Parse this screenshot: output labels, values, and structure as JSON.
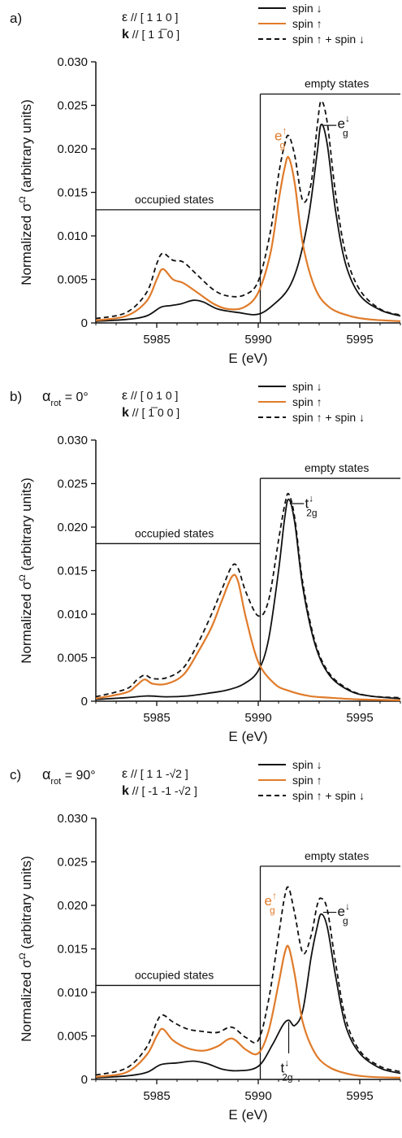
{
  "chart_data": [
    {
      "type": "line",
      "panel_label": "a)",
      "alpha_label": "",
      "alpha_value": "",
      "eps_label": "ε // [ 1 1 0 ]",
      "k_label": "k // [ 1 1̅ 0 ]",
      "legend": [
        "spin ↓",
        "spin ↑",
        "spin ↑ + spin ↓"
      ],
      "ylabel": "Normalized σ^Ω (arbitrary units)",
      "xlabel": "E (eV)",
      "xlim": [
        5982,
        5997
      ],
      "ylim": [
        0,
        0.03
      ],
      "xticks": [
        5985,
        5990,
        5995
      ],
      "yticks": [
        "0",
        "0.005",
        "0.010",
        "0.015",
        "0.020",
        "0.025",
        "0.030"
      ],
      "occupied": {
        "text": "occupied states",
        "level": 0.013,
        "end": 5990.1
      },
      "empty": {
        "text": "empty states",
        "level": 0.0263,
        "start": 5990.1
      },
      "series": [
        {
          "color": "#111111",
          "style": "solid",
          "x": [
            5982.0,
            5983.5,
            5984.5,
            5985.2,
            5985.7,
            5986.2,
            5986.8,
            5987.3,
            5988.0,
            5989.0,
            5990.0,
            5990.8,
            5991.5,
            5992.0,
            5992.5,
            5992.9,
            5993.1,
            5993.4,
            5993.8,
            5994.3,
            5995.0,
            5996.0,
            5997.0
          ],
          "values": [
            0.0002,
            0.0004,
            0.0008,
            0.0018,
            0.002,
            0.0022,
            0.0026,
            0.0024,
            0.0016,
            0.0012,
            0.001,
            0.0022,
            0.004,
            0.007,
            0.0125,
            0.0195,
            0.0228,
            0.0205,
            0.013,
            0.0068,
            0.0032,
            0.0015,
            0.0008
          ]
        },
        {
          "color": "#e07b2a",
          "style": "solid",
          "x": [
            5982.0,
            5983.5,
            5984.5,
            5985.0,
            5985.3,
            5985.8,
            5986.3,
            5987.0,
            5987.8,
            5988.5,
            5989.3,
            5990.0,
            5990.6,
            5991.0,
            5991.3,
            5991.5,
            5991.8,
            5992.2,
            5992.8,
            5993.5,
            5994.5,
            5995.5,
            5997.0
          ],
          "values": [
            0.0003,
            0.0008,
            0.0025,
            0.005,
            0.0062,
            0.005,
            0.0046,
            0.0035,
            0.0022,
            0.0016,
            0.0018,
            0.0035,
            0.008,
            0.014,
            0.0178,
            0.019,
            0.016,
            0.009,
            0.004,
            0.0018,
            0.0008,
            0.0004,
            0.0002
          ]
        },
        {
          "color": "#111111",
          "style": "dashed",
          "x": [
            5982.0,
            5983.5,
            5984.5,
            5985.0,
            5985.3,
            5985.8,
            5986.3,
            5987.0,
            5987.8,
            5988.5,
            5989.3,
            5990.0,
            5990.6,
            5991.0,
            5991.3,
            5991.5,
            5991.8,
            5992.2,
            5992.6,
            5992.9,
            5993.1,
            5993.4,
            5993.8,
            5994.3,
            5995.0,
            5996.0,
            5997.0
          ],
          "values": [
            0.0005,
            0.0012,
            0.0035,
            0.0068,
            0.008,
            0.0072,
            0.007,
            0.0055,
            0.0038,
            0.0031,
            0.0032,
            0.0048,
            0.0105,
            0.017,
            0.0205,
            0.0215,
            0.0192,
            0.014,
            0.016,
            0.0225,
            0.0255,
            0.023,
            0.015,
            0.008,
            0.0038,
            0.0016,
            0.0009
          ]
        }
      ],
      "annotations": [
        {
          "main": "e",
          "sup": "↑",
          "sub": "g",
          "color": "#e07b2a",
          "x": 5990.8,
          "y": 0.021
        },
        {
          "main": "e",
          "sup": "↓",
          "sub": "g",
          "color": "#111111",
          "x": 5993.9,
          "y": 0.0224
        }
      ]
    },
    {
      "type": "line",
      "panel_label": "b)",
      "alpha_label": "α",
      "alpha_sub": "rot",
      "alpha_value": "= 0°",
      "eps_label": "ε // [ 0 1 0 ]",
      "k_label": "k // [ 1̅ 0 0 ]",
      "legend": [
        "spin ↓",
        "spin ↑",
        "spin ↑ + spin ↓"
      ],
      "ylabel": "Normalized σ^Ω (arbitrary units)",
      "xlabel": "E (eV)",
      "xlim": [
        5982,
        5997
      ],
      "ylim": [
        0,
        0.03
      ],
      "xticks": [
        5985,
        5990,
        5995
      ],
      "yticks": [
        "0",
        "0.005",
        "0.010",
        "0.015",
        "0.020",
        "0.025",
        "0.030"
      ],
      "occupied": {
        "text": "occupied states",
        "level": 0.0181,
        "end": 5990.1
      },
      "empty": {
        "text": "empty states",
        "level": 0.0256,
        "start": 5990.1
      },
      "series": [
        {
          "color": "#111111",
          "style": "solid",
          "x": [
            5982.0,
            5983.5,
            5984.5,
            5985.5,
            5986.5,
            5987.5,
            5988.5,
            5989.3,
            5990.0,
            5990.5,
            5991.0,
            5991.3,
            5991.5,
            5991.8,
            5992.2,
            5992.8,
            5993.5,
            5994.5,
            5995.5,
            5997.0
          ],
          "values": [
            0.0002,
            0.0004,
            0.0006,
            0.0005,
            0.0006,
            0.0009,
            0.0013,
            0.002,
            0.0035,
            0.007,
            0.015,
            0.021,
            0.0232,
            0.0205,
            0.013,
            0.0065,
            0.003,
            0.0012,
            0.0006,
            0.0003
          ]
        },
        {
          "color": "#e07b2a",
          "style": "solid",
          "x": [
            5982.0,
            5983.5,
            5984.0,
            5984.4,
            5984.8,
            5985.5,
            5986.3,
            5987.0,
            5987.7,
            5988.2,
            5988.7,
            5989.0,
            5989.4,
            5990.0,
            5990.8,
            5991.5,
            5992.5,
            5993.5,
            5995.0,
            5997.0
          ],
          "values": [
            0.0003,
            0.001,
            0.0018,
            0.0025,
            0.002,
            0.002,
            0.003,
            0.0055,
            0.0085,
            0.0115,
            0.0143,
            0.0138,
            0.0095,
            0.0045,
            0.002,
            0.0012,
            0.0006,
            0.0004,
            0.0002,
            0.0001
          ]
        },
        {
          "color": "#111111",
          "style": "dashed",
          "x": [
            5982.0,
            5983.5,
            5984.0,
            5984.4,
            5984.8,
            5985.5,
            5986.3,
            5987.0,
            5987.7,
            5988.2,
            5988.7,
            5989.0,
            5989.4,
            5990.0,
            5990.5,
            5991.0,
            5991.3,
            5991.5,
            5991.8,
            5992.2,
            5992.8,
            5993.5,
            5994.5,
            5995.5,
            5997.0
          ],
          "values": [
            0.0005,
            0.0014,
            0.0024,
            0.003,
            0.0026,
            0.0027,
            0.0038,
            0.0065,
            0.01,
            0.0128,
            0.0155,
            0.0153,
            0.0125,
            0.0098,
            0.0115,
            0.0185,
            0.0225,
            0.0238,
            0.021,
            0.0135,
            0.0068,
            0.0032,
            0.0013,
            0.0006,
            0.0004
          ]
        }
      ],
      "annotations": [
        {
          "main": "t",
          "sup": "↓",
          "sub": "2g",
          "color": "#111111",
          "x": 5992.3,
          "y": 0.0222
        }
      ]
    },
    {
      "type": "line",
      "panel_label": "c)",
      "alpha_label": "α",
      "alpha_sub": "rot",
      "alpha_value": "= 90°",
      "eps_label": "ε // [ 1 1 -√2 ]",
      "k_label": "k // [ -1 -1 -√2 ]",
      "legend": [
        "spin ↓",
        "spin ↑",
        "spin ↑ + spin ↓"
      ],
      "ylabel": "Normalized σ^Ω (arbitrary units)",
      "xlabel": "E (eV)",
      "xlim": [
        5982,
        5997
      ],
      "ylim": [
        0,
        0.03
      ],
      "xticks": [
        5985,
        5990,
        5995
      ],
      "yticks": [
        "0",
        "0.005",
        "0.010",
        "0.015",
        "0.020",
        "0.025",
        "0.030"
      ],
      "occupied": {
        "text": "occupied states",
        "level": 0.0108,
        "end": 5990.1
      },
      "empty": {
        "text": "empty states",
        "level": 0.0245,
        "start": 5990.1
      },
      "series": [
        {
          "color": "#111111",
          "style": "solid",
          "x": [
            5982.0,
            5983.5,
            5984.5,
            5985.2,
            5986.0,
            5986.8,
            5987.5,
            5988.2,
            5989.0,
            5990.0,
            5990.7,
            5991.2,
            5991.5,
            5991.8,
            5992.2,
            5992.6,
            5992.9,
            5993.1,
            5993.4,
            5993.8,
            5994.3,
            5995.0,
            5996.0,
            5997.0
          ],
          "values": [
            0.0002,
            0.0004,
            0.0008,
            0.0017,
            0.0019,
            0.0021,
            0.0018,
            0.0012,
            0.001,
            0.0015,
            0.004,
            0.0062,
            0.0068,
            0.0062,
            0.008,
            0.014,
            0.0175,
            0.019,
            0.0175,
            0.012,
            0.0062,
            0.003,
            0.0013,
            0.0007
          ]
        },
        {
          "color": "#e07b2a",
          "style": "solid",
          "x": [
            5982.0,
            5983.5,
            5984.5,
            5985.0,
            5985.3,
            5985.8,
            5986.5,
            5987.3,
            5988.0,
            5988.7,
            5989.4,
            5990.0,
            5990.5,
            5991.0,
            5991.3,
            5991.5,
            5991.8,
            5992.2,
            5992.8,
            5993.5,
            5994.5,
            5995.5,
            5997.0
          ],
          "values": [
            0.0003,
            0.0008,
            0.0028,
            0.005,
            0.0058,
            0.0045,
            0.0036,
            0.0033,
            0.0038,
            0.0047,
            0.0034,
            0.003,
            0.0055,
            0.011,
            0.0145,
            0.0152,
            0.012,
            0.0065,
            0.003,
            0.0014,
            0.0006,
            0.0003,
            0.0002
          ]
        },
        {
          "color": "#111111",
          "style": "dashed",
          "x": [
            5982.0,
            5983.5,
            5984.5,
            5985.0,
            5985.3,
            5985.8,
            5986.5,
            5987.3,
            5988.0,
            5988.7,
            5989.4,
            5990.0,
            5990.5,
            5991.0,
            5991.3,
            5991.5,
            5991.8,
            5992.2,
            5992.6,
            5992.9,
            5993.1,
            5993.4,
            5993.8,
            5994.3,
            5995.0,
            5996.0,
            5997.0
          ],
          "values": [
            0.0005,
            0.0013,
            0.0037,
            0.0066,
            0.0074,
            0.0066,
            0.0058,
            0.0055,
            0.0054,
            0.006,
            0.0048,
            0.0045,
            0.009,
            0.0165,
            0.021,
            0.022,
            0.019,
            0.0145,
            0.0165,
            0.02,
            0.0208,
            0.0195,
            0.0135,
            0.007,
            0.0033,
            0.0015,
            0.0009
          ]
        }
      ],
      "annotations": [
        {
          "main": "e",
          "sup": "↑",
          "sub": "g",
          "color": "#e07b2a",
          "x": 5990.3,
          "y": 0.02
        },
        {
          "main": "e",
          "sup": "↓",
          "sub": "g",
          "color": "#111111",
          "x": 5993.9,
          "y": 0.0188
        },
        {
          "main": "t",
          "sup": "↓",
          "sub": "2g",
          "color": "#111111",
          "x": 5991.1,
          "y": 0.0008
        }
      ]
    }
  ]
}
